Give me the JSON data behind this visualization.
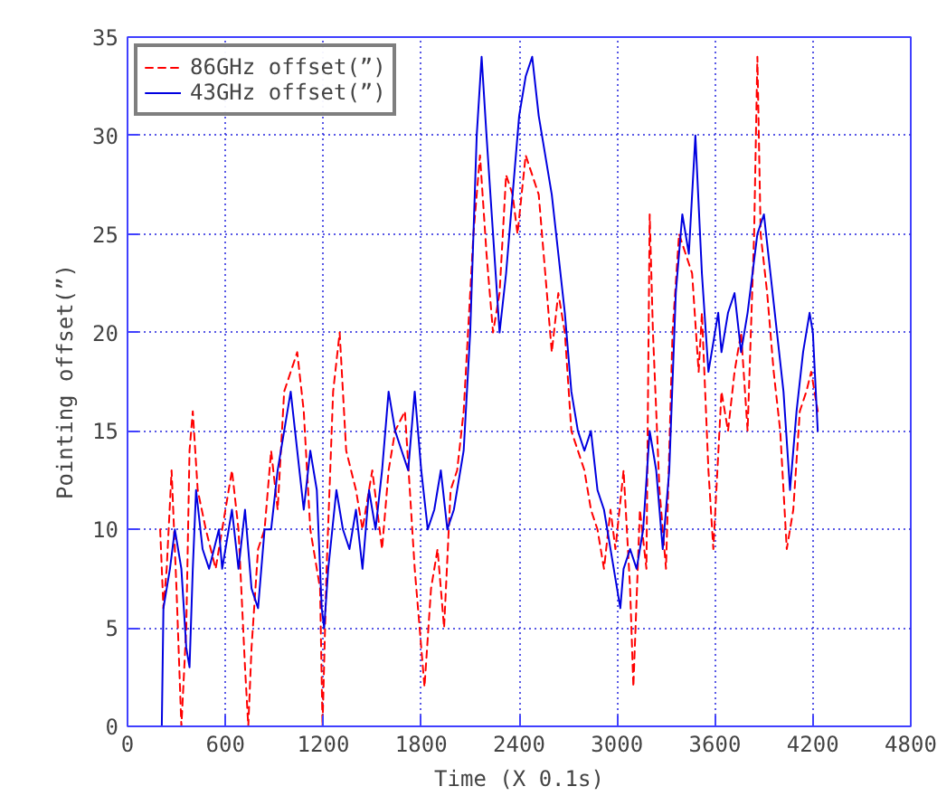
{
  "chart_data": {
    "type": "line",
    "xlabel": "Time (X 0.1s)",
    "ylabel": "Pointing offset(”)",
    "xlim": [
      0,
      4800
    ],
    "xticks": [
      0,
      600,
      1200,
      1800,
      2400,
      3000,
      3600,
      4200,
      4800
    ],
    "ylim": [
      0,
      35
    ],
    "yticks": [
      0,
      5,
      10,
      15,
      20,
      25,
      30,
      35
    ],
    "grid": true,
    "legend": "top left",
    "series": [
      {
        "name": "86GHz offset(”)",
        "color": "#ff0000",
        "line_style": "dashed",
        "x": [
          200,
          220,
          240,
          270,
          300,
          330,
          360,
          380,
          400,
          430,
          480,
          540,
          600,
          640,
          680,
          720,
          740,
          760,
          800,
          840,
          880,
          920,
          960,
          1000,
          1040,
          1080,
          1120,
          1180,
          1195,
          1220,
          1260,
          1300,
          1340,
          1400,
          1440,
          1500,
          1560,
          1600,
          1640,
          1700,
          1760,
          1800,
          1820,
          1860,
          1900,
          1940,
          1980,
          2020,
          2060,
          2120,
          2160,
          2200,
          2240,
          2280,
          2320,
          2360,
          2390,
          2440,
          2480,
          2520,
          2560,
          2600,
          2640,
          2680,
          2720,
          2760,
          2800,
          2840,
          2880,
          2920,
          2960,
          2990,
          3040,
          3080,
          3100,
          3140,
          3180,
          3200,
          3220,
          3260,
          3300,
          3340,
          3380,
          3420,
          3460,
          3500,
          3520,
          3560,
          3590,
          3640,
          3680,
          3720,
          3760,
          3800,
          3840,
          3860,
          3880,
          3920,
          3960,
          4000,
          4040,
          4080,
          4120,
          4160,
          4190,
          4230
        ],
        "values": [
          10,
          6,
          8,
          13,
          7,
          0,
          5,
          14,
          16,
          12,
          10,
          8,
          11,
          13,
          10,
          3,
          0,
          4,
          9,
          10,
          14,
          11,
          17,
          18,
          19,
          16,
          10,
          7,
          0,
          8,
          17,
          20,
          14,
          12,
          10,
          13,
          9,
          13,
          15,
          16,
          8,
          4,
          2,
          7,
          9,
          5,
          12,
          13,
          16,
          25,
          29,
          24,
          20,
          22,
          28,
          27,
          25,
          29,
          28,
          27,
          23,
          19,
          22,
          20,
          15,
          14,
          13,
          11,
          10,
          8,
          11,
          9,
          13,
          7,
          2,
          11,
          8,
          26,
          20,
          12,
          8,
          20,
          25,
          24,
          23,
          18,
          21,
          13,
          9,
          17,
          15,
          18,
          20,
          15,
          25,
          34,
          25,
          22,
          18,
          15,
          9,
          11,
          16,
          17,
          18,
          16
        ]
      },
      {
        "name": "43GHz offset(”)",
        "color": "#0000e0",
        "line_style": "solid",
        "x": [
          210,
          220,
          260,
          290,
          330,
          360,
          380,
          400,
          420,
          460,
          500,
          560,
          580,
          640,
          680,
          720,
          760,
          800,
          840,
          880,
          920,
          960,
          1000,
          1040,
          1080,
          1120,
          1160,
          1190,
          1205,
          1230,
          1280,
          1320,
          1360,
          1400,
          1440,
          1480,
          1520,
          1560,
          1600,
          1640,
          1680,
          1720,
          1760,
          1800,
          1840,
          1880,
          1920,
          1960,
          2000,
          2060,
          2100,
          2140,
          2170,
          2200,
          2240,
          2280,
          2320,
          2360,
          2400,
          2440,
          2480,
          2520,
          2560,
          2600,
          2640,
          2680,
          2720,
          2760,
          2800,
          2840,
          2880,
          2920,
          2960,
          3020,
          3040,
          3080,
          3120,
          3160,
          3200,
          3240,
          3280,
          3320,
          3360,
          3400,
          3440,
          3480,
          3520,
          3560,
          3620,
          3640,
          3680,
          3720,
          3760,
          3800,
          3860,
          3900,
          3940,
          3980,
          4020,
          4060,
          4100,
          4140,
          4180,
          4200,
          4230
        ],
        "values": [
          0,
          6,
          8,
          10,
          8,
          4,
          3,
          8,
          12,
          9,
          8,
          10,
          8,
          11,
          8,
          11,
          7,
          6,
          10,
          10,
          13,
          15,
          17,
          14,
          11,
          14,
          12,
          6,
          5,
          8,
          12,
          10,
          9,
          11,
          8,
          12,
          10,
          13,
          17,
          15,
          14,
          13,
          17,
          13,
          10,
          11,
          13,
          10,
          11,
          14,
          20,
          30,
          34,
          30,
          25,
          20,
          23,
          27,
          31,
          33,
          34,
          31,
          29,
          27,
          24,
          21,
          17,
          15,
          14,
          15,
          12,
          11,
          9,
          6,
          8,
          9,
          8,
          10,
          15,
          13,
          9,
          13,
          22,
          26,
          24,
          30,
          23,
          18,
          21,
          19,
          21,
          22,
          19,
          21,
          25,
          26,
          23,
          20,
          17,
          12,
          16,
          19,
          21,
          20,
          15
        ]
      }
    ]
  }
}
